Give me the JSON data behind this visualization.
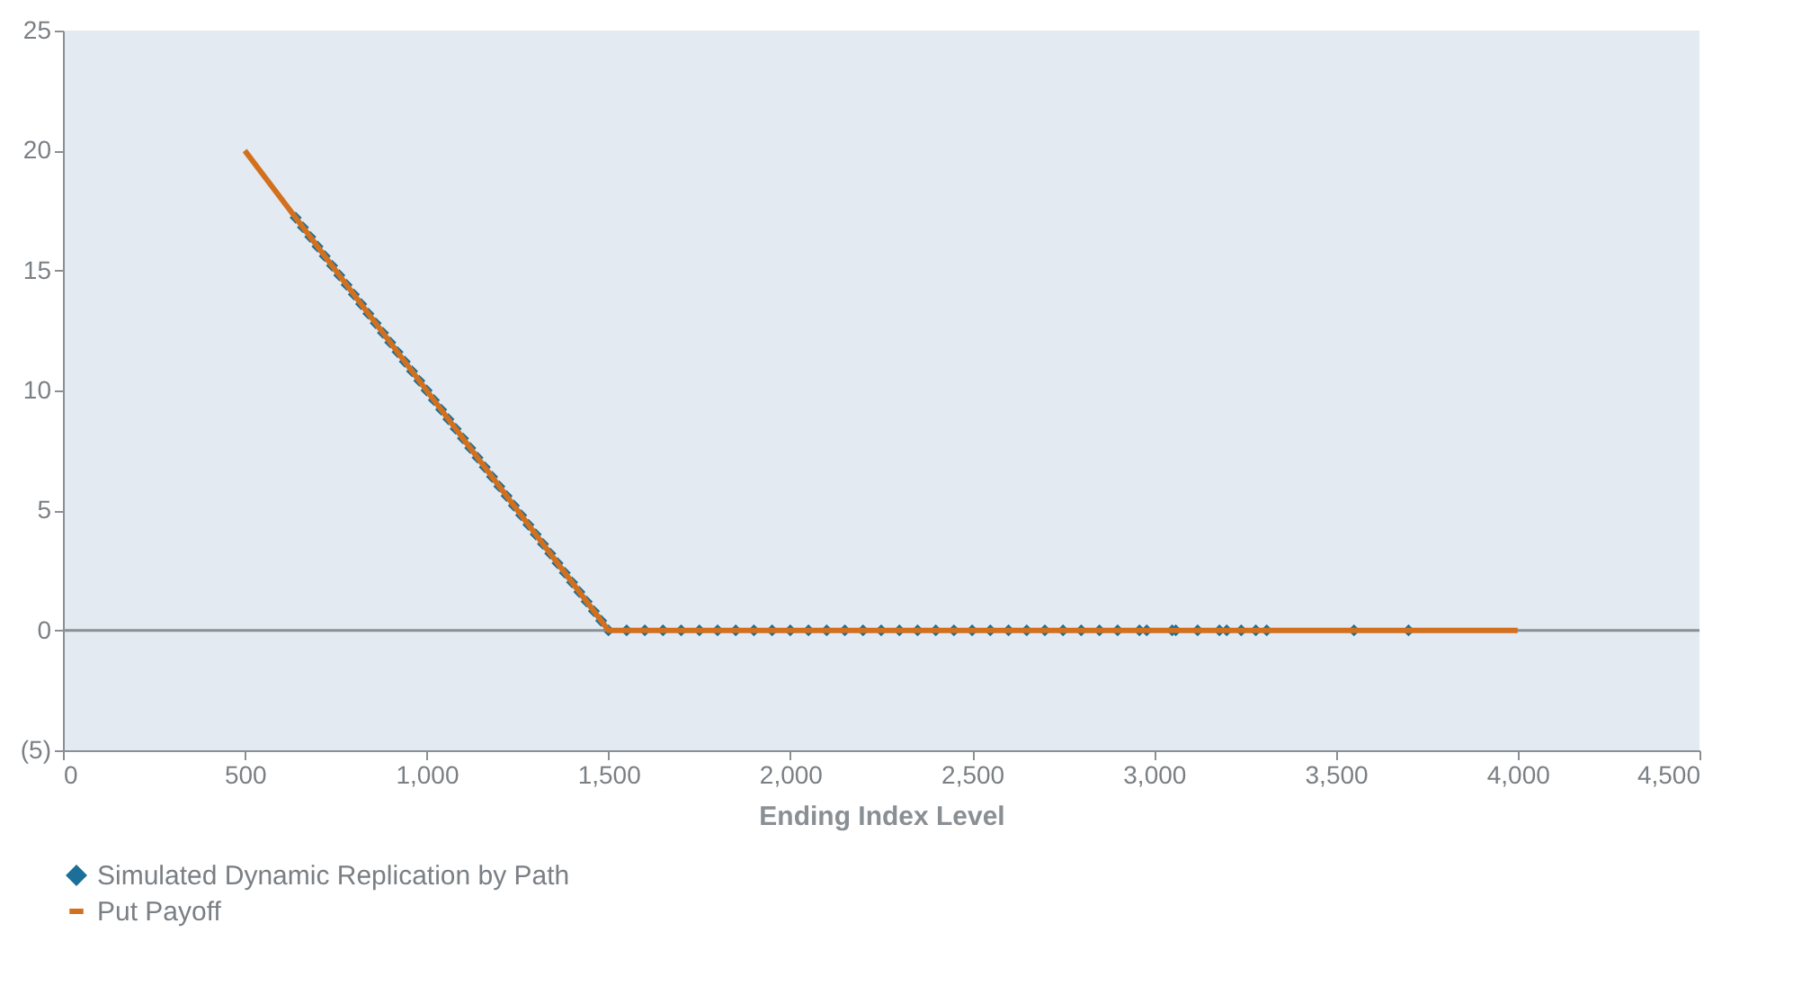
{
  "chart_data": {
    "type": "scatter",
    "xlabel": "Ending Index Level",
    "xlim": [
      0,
      4500
    ],
    "ylim": [
      -5,
      25
    ],
    "xticks": [
      0,
      500,
      {
        "value": 1000,
        "label": "1,000"
      },
      {
        "value": 1500,
        "label": "1,500"
      },
      {
        "value": 2000,
        "label": "2,000"
      },
      {
        "value": 2500,
        "label": "2,500"
      },
      {
        "value": 3000,
        "label": "3,000"
      },
      {
        "value": 3500,
        "label": "3,500"
      },
      {
        "value": 4000,
        "label": "4,000"
      },
      {
        "value": 4500,
        "label": "4,500"
      }
    ],
    "yticks": [
      {
        "value": -5,
        "label": "(5)"
      },
      0,
      5,
      10,
      15,
      20,
      25
    ],
    "grid": false,
    "legend": "bottom",
    "ref_lines": [
      {
        "axis": "y",
        "value": 0,
        "color": "#8a8f94"
      }
    ],
    "series": [
      {
        "name": "Simulated Dynamic Replication by Path",
        "marker": "diamond",
        "color": "#1b6f98",
        "x": [
          640,
          660,
          680,
          700,
          720,
          740,
          760,
          780,
          800,
          820,
          840,
          860,
          880,
          900,
          920,
          940,
          960,
          980,
          1000,
          1020,
          1040,
          1060,
          1080,
          1100,
          1120,
          1140,
          1160,
          1180,
          1200,
          1220,
          1240,
          1260,
          1280,
          1300,
          1320,
          1340,
          1360,
          1380,
          1400,
          1420,
          1440,
          1460,
          1480,
          1500,
          1550,
          1600,
          1650,
          1700,
          1750,
          1800,
          1850,
          1900,
          1950,
          2000,
          2050,
          2100,
          2150,
          2200,
          2250,
          2300,
          2350,
          2400,
          2450,
          2500,
          2550,
          2600,
          2650,
          2700,
          2750,
          2800,
          2850,
          2900,
          2960,
          2980,
          3050,
          3060,
          3120,
          3180,
          3200,
          3240,
          3280,
          3310,
          3550,
          3700
        ],
        "values": [
          17.2,
          16.8,
          16.4,
          16,
          15.6,
          15.2,
          14.8,
          14.4,
          14,
          13.6,
          13.2,
          12.8,
          12.4,
          12,
          11.6,
          11.2,
          10.8,
          10.4,
          10,
          9.6,
          9.2,
          8.8,
          8.4,
          8,
          7.6,
          7.2,
          6.8,
          6.4,
          6,
          5.6,
          5.2,
          4.8,
          4.4,
          4,
          3.6,
          3.2,
          2.8,
          2.4,
          2,
          1.6,
          1.2,
          0.8,
          0.4,
          0,
          0,
          0,
          0,
          0,
          0,
          0,
          0,
          0,
          0,
          0,
          0,
          0,
          0,
          0,
          0,
          0,
          0,
          0,
          0,
          0,
          0,
          0,
          0,
          0,
          0,
          0,
          0,
          0,
          0,
          0,
          0,
          0,
          0,
          0,
          0,
          0,
          0,
          0,
          0,
          0
        ]
      },
      {
        "name": "Put Payoff",
        "type": "line",
        "color": "#d2701e",
        "x": [
          500,
          1500,
          4000
        ],
        "values": [
          20,
          0,
          0
        ]
      }
    ]
  }
}
